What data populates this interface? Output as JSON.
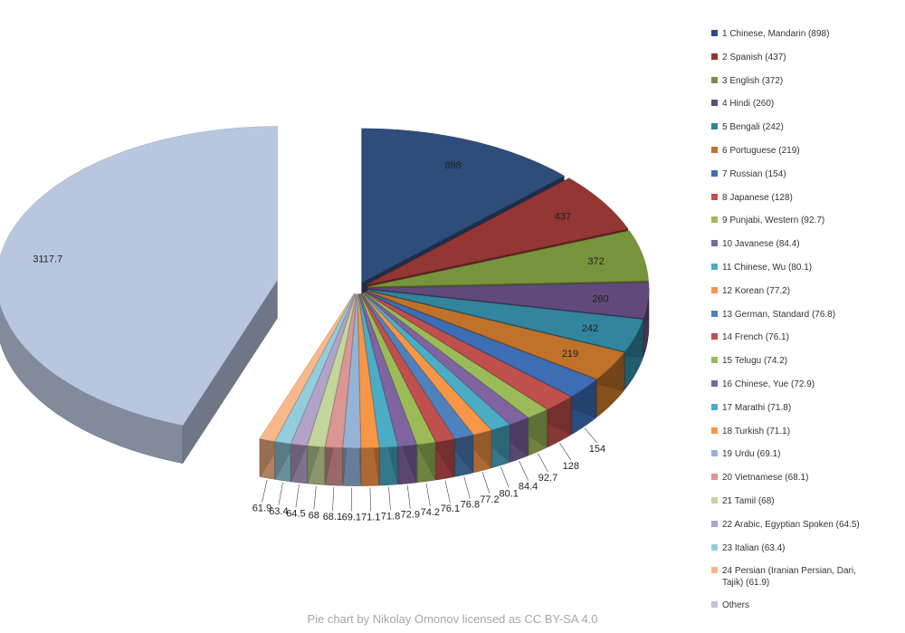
{
  "chart_data": {
    "type": "pie",
    "variant": "3d-exploded",
    "title": "",
    "slices": [
      {
        "label": "1 Chinese, Mandarin (898)",
        "value": 898,
        "color": "#2e4d7b"
      },
      {
        "label": "2 Spanish (437)",
        "value": 437,
        "color": "#943634"
      },
      {
        "label": "3 English (372)",
        "value": 372,
        "color": "#77933c"
      },
      {
        "label": "4 Hindi (260)",
        "value": 260,
        "color": "#604a7b"
      },
      {
        "label": "5 Bengali (242)",
        "value": 242,
        "color": "#31859c"
      },
      {
        "label": "6 Portuguese (219)",
        "value": 219,
        "color": "#c0722a"
      },
      {
        "label": "7 Russian (154)",
        "value": 154,
        "color": "#3d6db5"
      },
      {
        "label": "8 Japanese (128)",
        "value": 128,
        "color": "#c0504d"
      },
      {
        "label": "9 Punjabi, Western (92.7)",
        "value": 92.7,
        "color": "#9bbb59"
      },
      {
        "label": "10 Javanese (84.4)",
        "value": 84.4,
        "color": "#8064a2"
      },
      {
        "label": "11 Chinese, Wu (80.1)",
        "value": 80.1,
        "color": "#4bacc6"
      },
      {
        "label": "12 Korean (77.2)",
        "value": 77.2,
        "color": "#f79646"
      },
      {
        "label": "13 German, Standard (76.8)",
        "value": 76.8,
        "color": "#4f81bd"
      },
      {
        "label": "14 French (76.1)",
        "value": 76.1,
        "color": "#c0504d"
      },
      {
        "label": "15 Telugu (74.2)",
        "value": 74.2,
        "color": "#9bbb59"
      },
      {
        "label": "16 Chinese, Yue (72.9)",
        "value": 72.9,
        "color": "#8064a2"
      },
      {
        "label": "17 Marathi (71.8)",
        "value": 71.8,
        "color": "#4bacc6"
      },
      {
        "label": "18 Turkish (71.1)",
        "value": 71.1,
        "color": "#f79646"
      },
      {
        "label": "19 Urdu (69.1)",
        "value": 69.1,
        "color": "#95b3d7"
      },
      {
        "label": "20 Vietnamese (68.1)",
        "value": 68.1,
        "color": "#d99694"
      },
      {
        "label": "21 Tamil (68)",
        "value": 68,
        "color": "#c3d69b"
      },
      {
        "label": "22 Arabic, Egyptian Spoken (64.5)",
        "value": 64.5,
        "color": "#b3a2c7"
      },
      {
        "label": "23 Italian (63.4)",
        "value": 63.4,
        "color": "#93cddd"
      },
      {
        "label": "24 Persian (Iranian Persian, Dari, Tajik) (61.9)",
        "value": 61.9,
        "color": "#fab88a"
      },
      {
        "label": "Others",
        "value": 3117.7,
        "color": "#b9c6df"
      }
    ],
    "data_labels": [
      "898",
      "437",
      "372",
      "260",
      "242",
      "219",
      "154",
      "128",
      "92.7",
      "84.4",
      "80.1",
      "77.2",
      "76.8",
      "76.1",
      "74.2",
      "72.9",
      "71.8",
      "71.1",
      "69.1",
      "68.1",
      "68",
      "64.5",
      "63.4",
      "61.9",
      "3117.7"
    ],
    "legend_position": "right"
  },
  "credit": "Pie chart by Nikolay Omonov licensed as CC BY-SA 4.0"
}
